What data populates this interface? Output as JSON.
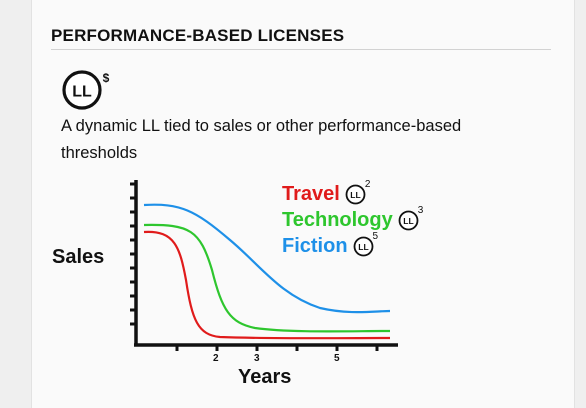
{
  "section": {
    "title": "PERFORMANCE-BASED LICENSES",
    "badge": {
      "text": "LL",
      "superscript": "$"
    },
    "description": "A dynamic LL tied to sales or other performance-based thresholds"
  },
  "colors": {
    "travel": "#e01b1b",
    "technology": "#2ec62e",
    "fiction": "#1e90e8"
  },
  "chart_data": {
    "type": "line",
    "ylabel": "Sales",
    "xlabel": "Years",
    "x_tick_labels": [
      "2",
      "3",
      "5"
    ],
    "series": [
      {
        "name": "Travel",
        "license": "LL",
        "license_superscript": "2",
        "color_key": "travel"
      },
      {
        "name": "Technology",
        "license": "LL",
        "license_superscript": "3",
        "color_key": "technology"
      },
      {
        "name": "Fiction",
        "license": "LL",
        "license_superscript": "5",
        "color_key": "fiction"
      }
    ]
  }
}
